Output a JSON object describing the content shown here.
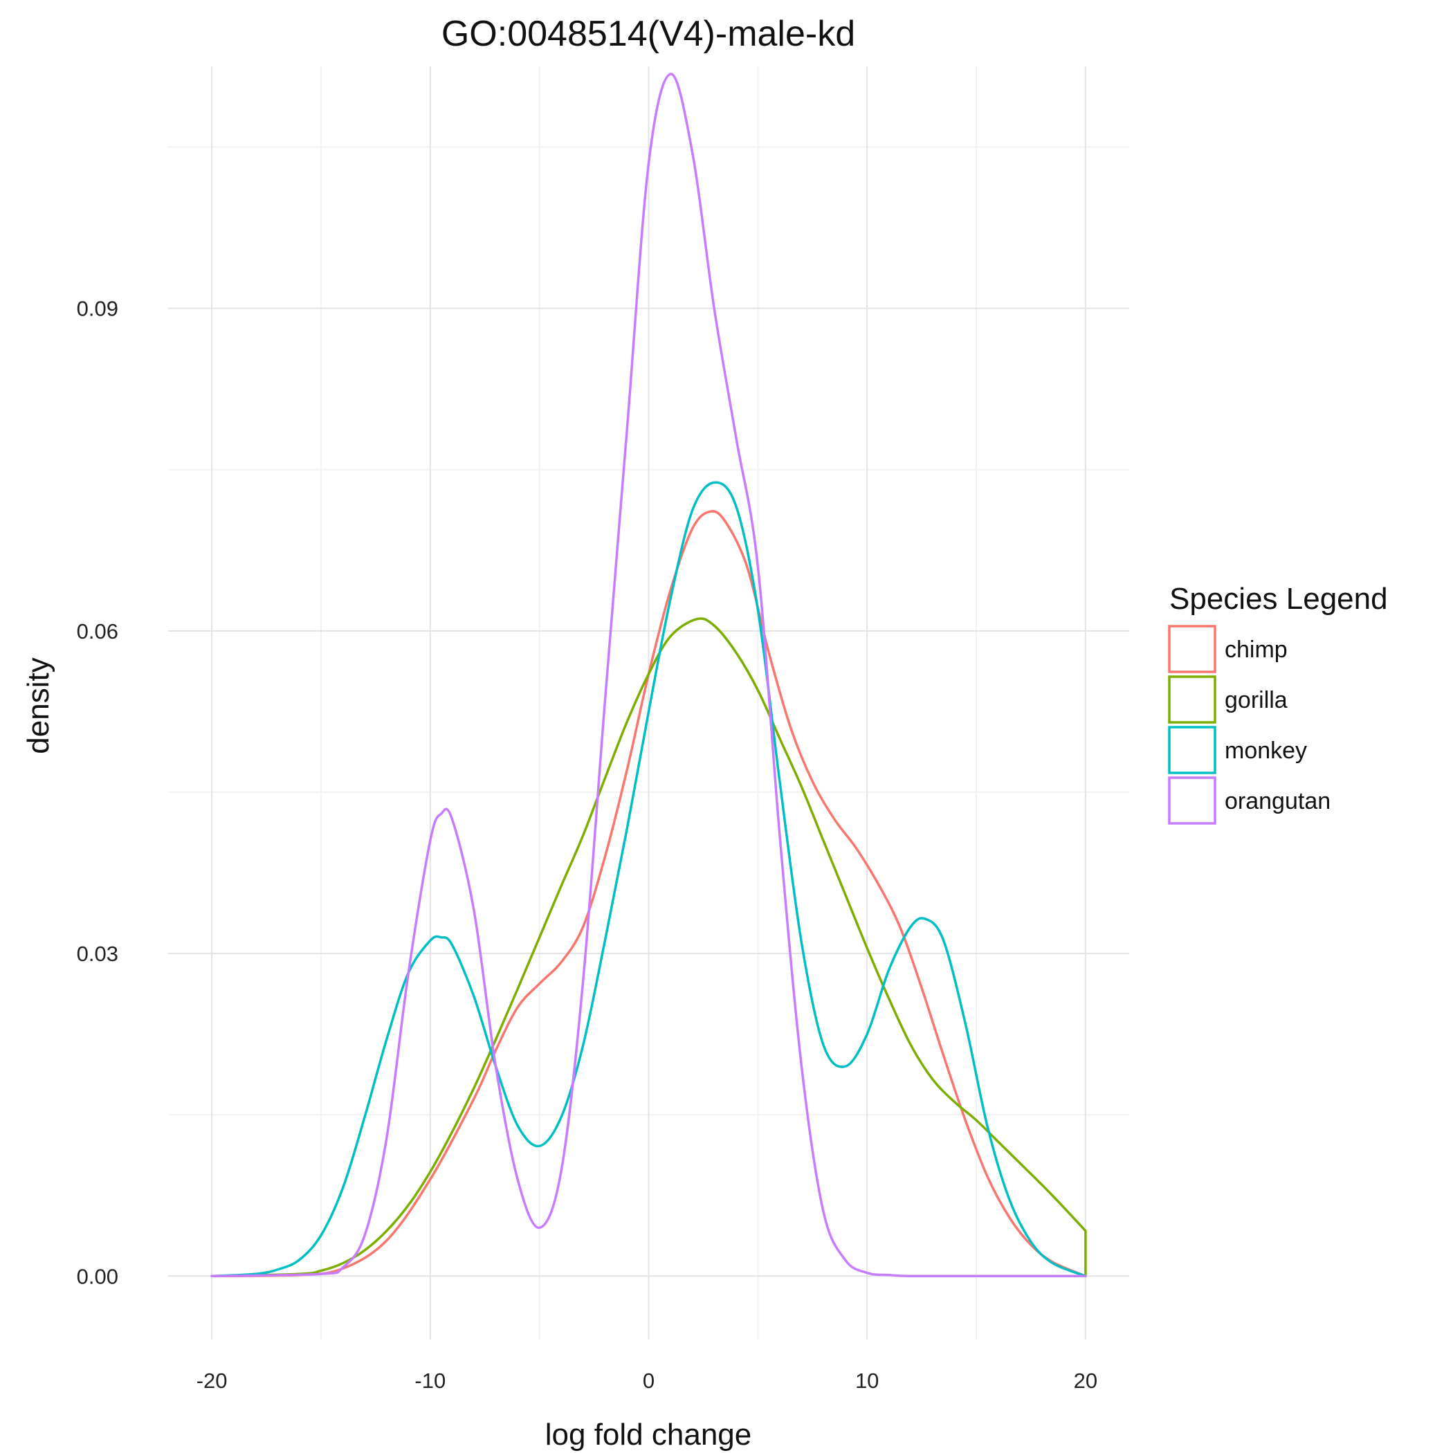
{
  "chart_data": {
    "type": "line",
    "title": "GO:0048514(V4)-male-kd",
    "xlabel": "log fold change",
    "ylabel": "density",
    "xlim": [
      -22,
      22
    ],
    "ylim": [
      -0.0059,
      0.1125
    ],
    "x_ticks": [
      -20,
      -10,
      0,
      10,
      20
    ],
    "x_tick_labels": [
      "-20",
      "-10",
      "0",
      "10",
      "20"
    ],
    "y_ticks": [
      0.0,
      0.03,
      0.06,
      0.09
    ],
    "y_tick_labels": [
      "0.00",
      "0.03",
      "0.06",
      "0.09"
    ],
    "x_minor": [
      -15,
      -5,
      5,
      15
    ],
    "y_minor": [
      0.015,
      0.045,
      0.075,
      0.105
    ],
    "grid": true,
    "legend": {
      "title": "Species Legend",
      "position": "right"
    },
    "series": [
      {
        "name": "chimp",
        "color": "#F8766D",
        "x": [
          -20,
          -16,
          -14,
          -12,
          -10,
          -8,
          -7,
          -6,
          -5,
          -4,
          -3,
          -2,
          -1,
          0,
          1,
          2,
          2.8,
          3.5,
          4.5,
          5.5,
          6.5,
          7.5,
          8.5,
          9.5,
          10.5,
          11.5,
          12.5,
          13.5,
          14.5,
          15.5,
          16.5,
          17.5,
          18.5,
          20
        ],
        "y": [
          0,
          0.0001,
          0.0007,
          0.0033,
          0.009,
          0.0165,
          0.021,
          0.025,
          0.0272,
          0.0292,
          0.0325,
          0.039,
          0.047,
          0.056,
          0.0638,
          0.0695,
          0.0711,
          0.0702,
          0.066,
          0.058,
          0.051,
          0.046,
          0.0425,
          0.0398,
          0.0365,
          0.0325,
          0.0268,
          0.0205,
          0.0145,
          0.0093,
          0.0055,
          0.0029,
          0.0013,
          0
        ]
      },
      {
        "name": "gorilla",
        "color": "#7CAE00",
        "x": [
          -20,
          -16,
          -15,
          -14,
          -13,
          -12,
          -11,
          -10,
          -9,
          -8,
          -7,
          -6,
          -5,
          -4,
          -3,
          -2,
          -1,
          0,
          1,
          2.2,
          3,
          4,
          5,
          6,
          7,
          8,
          9,
          10,
          11,
          12,
          13,
          14,
          15,
          16,
          17,
          18,
          19,
          20
        ],
        "y": [
          0,
          0.0002,
          0.0005,
          0.0012,
          0.0024,
          0.0042,
          0.0066,
          0.0097,
          0.0134,
          0.0175,
          0.022,
          0.0267,
          0.0315,
          0.0363,
          0.041,
          0.0463,
          0.0515,
          0.056,
          0.0595,
          0.0611,
          0.0605,
          0.058,
          0.0545,
          0.05,
          0.0455,
          0.0405,
          0.0355,
          0.0305,
          0.0258,
          0.0215,
          0.0183,
          0.0162,
          0.0145,
          0.0125,
          0.0105,
          0.0085,
          0.0064,
          0.0042
        ]
      },
      {
        "name": "monkey",
        "color": "#00BFC4",
        "x": [
          -20,
          -18,
          -17,
          -16,
          -15,
          -14,
          -13,
          -12,
          -11,
          -10,
          -9.5,
          -9,
          -8,
          -7,
          -6,
          -5,
          -4,
          -3,
          -2,
          -1,
          0,
          1,
          2,
          3,
          4,
          5,
          6,
          7,
          8,
          9,
          10,
          11,
          12,
          12.7,
          13.5,
          14.5,
          15.5,
          16.5,
          17.5,
          18.5,
          20
        ],
        "y": [
          0,
          0.0002,
          0.0006,
          0.0015,
          0.0038,
          0.0082,
          0.0148,
          0.022,
          0.0282,
          0.0312,
          0.0315,
          0.0308,
          0.026,
          0.0195,
          0.014,
          0.0121,
          0.0148,
          0.0215,
          0.0312,
          0.0415,
          0.0525,
          0.063,
          0.0712,
          0.0738,
          0.0716,
          0.062,
          0.046,
          0.031,
          0.0215,
          0.0195,
          0.0225,
          0.0285,
          0.0325,
          0.0332,
          0.0312,
          0.0235,
          0.014,
          0.0072,
          0.0032,
          0.0012,
          0
        ]
      },
      {
        "name": "orangutan",
        "color": "#C77CFF",
        "x": [
          -20,
          -15,
          -14,
          -13,
          -12,
          -11,
          -10,
          -9.5,
          -9,
          -8,
          -7,
          -6,
          -5,
          -4,
          -3,
          -2,
          -1,
          0,
          1,
          2,
          3,
          4,
          5,
          6,
          7,
          8,
          9,
          10,
          11,
          12,
          14,
          16,
          20
        ],
        "y": [
          0,
          0.0002,
          0.0008,
          0.0038,
          0.0128,
          0.0282,
          0.0405,
          0.043,
          0.0425,
          0.034,
          0.0195,
          0.009,
          0.0045,
          0.0098,
          0.0275,
          0.0535,
          0.0785,
          0.1035,
          0.1118,
          0.1045,
          0.09,
          0.078,
          0.066,
          0.041,
          0.0195,
          0.006,
          0.0015,
          0.0003,
          0.0001,
          0,
          0,
          0,
          0
        ]
      }
    ]
  }
}
